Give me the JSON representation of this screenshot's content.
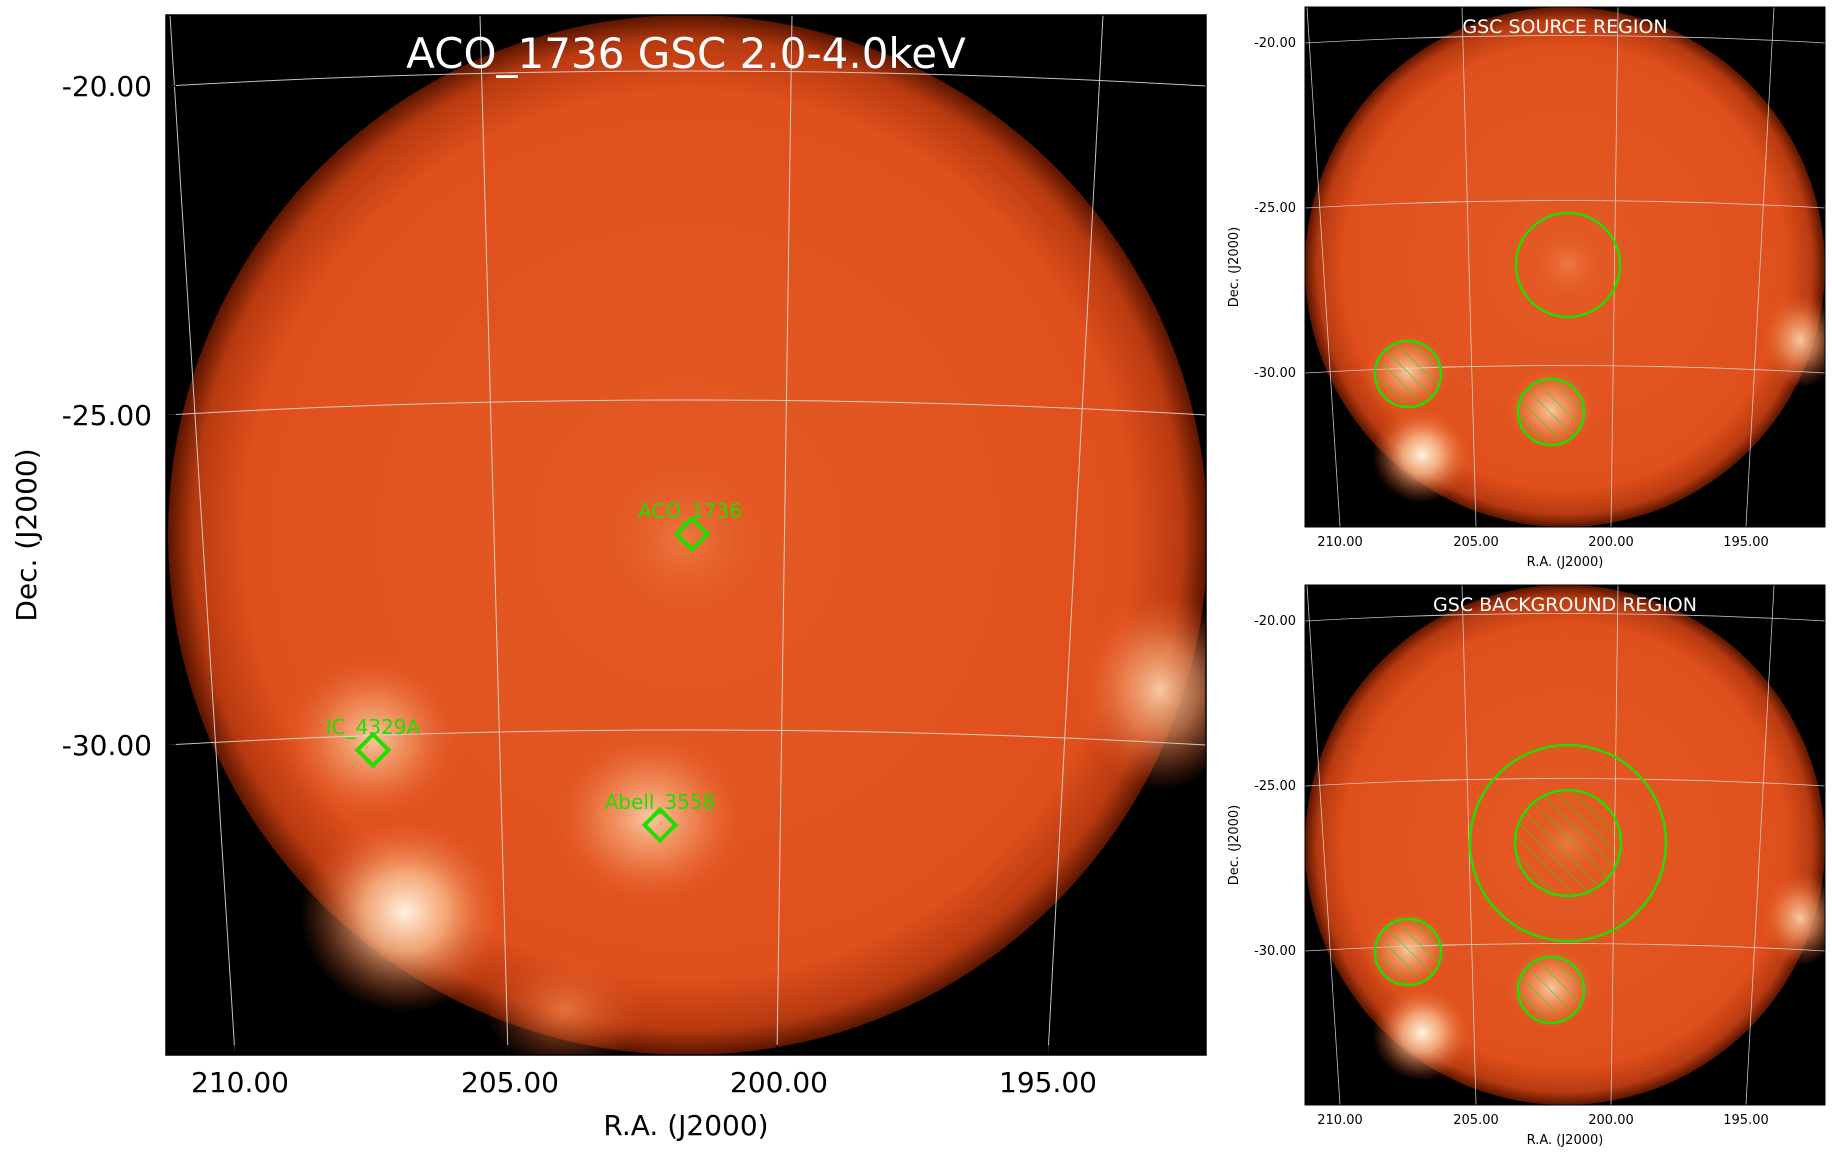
{
  "main_panel": {
    "title": "ACO_1736 GSC 2.0-4.0keV",
    "xlabel": "R.A. (J2000)",
    "ylabel": "Dec. (J2000)",
    "xticks": [
      "210.00",
      "205.00",
      "200.00",
      "195.00"
    ],
    "yticks": [
      "-20.00",
      "-25.00",
      "-30.00"
    ],
    "sources": [
      {
        "name": "ACO_1736",
        "ra": 201.7,
        "dec": -27.1
      },
      {
        "name": "IC_4329A",
        "ra": 207.3,
        "dec": -30.3
      },
      {
        "name": "Abell_3558",
        "ra": 202.2,
        "dec": -31.5
      }
    ]
  },
  "source_panel": {
    "title": "GSC SOURCE REGION",
    "xlabel": "R.A. (J2000)",
    "ylabel": "Dec. (J2000)",
    "xticks": [
      "210.00",
      "205.00",
      "200.00",
      "195.00"
    ],
    "yticks": [
      "-20.00",
      "-25.00",
      "-30.00"
    ],
    "regions": [
      "source-circle",
      "excluded-IC_4329A",
      "excluded-Abell_3558"
    ]
  },
  "background_panel": {
    "title": "GSC BACKGROUND REGION",
    "xlabel": "R.A. (J2000)",
    "ylabel": "Dec. (J2000)",
    "xticks": [
      "210.00",
      "205.00",
      "200.00",
      "195.00"
    ],
    "yticks": [
      "-20.00",
      "-25.00",
      "-30.00"
    ],
    "regions": [
      "background-annulus",
      "excluded-source",
      "excluded-IC_4329A",
      "excluded-Abell_3558"
    ]
  },
  "colors": {
    "field": "#e0501c",
    "outside": "#000000",
    "region": "#22dd00",
    "grid": "#d8d8d8"
  }
}
